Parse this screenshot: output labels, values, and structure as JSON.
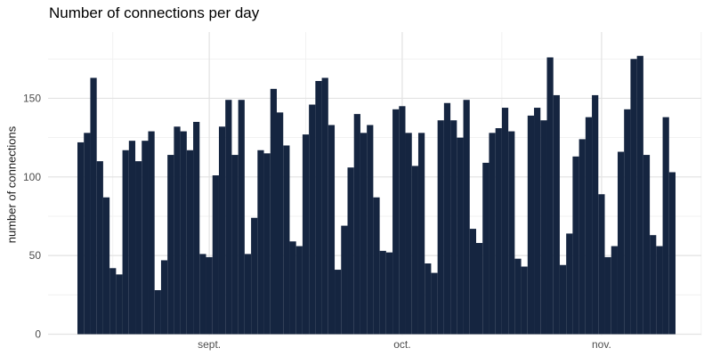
{
  "chart_data": {
    "type": "bar",
    "title": "Number of connections per day",
    "xlabel": "",
    "ylabel": "number of connections",
    "x_tick_labels": [
      "sept.",
      "oct.",
      "nov."
    ],
    "x_ticks": [
      {
        "label": "sept.",
        "bar_index": 21
      },
      {
        "label": "oct.",
        "bar_index": 51
      },
      {
        "label": "nov.",
        "bar_index": 82
      }
    ],
    "y_ticks": [
      0,
      50,
      100,
      150
    ],
    "y_minor_ticks": [
      25,
      75,
      125,
      175
    ],
    "ylim": [
      0,
      187
    ],
    "grid": true,
    "legend": "none",
    "categories_note": "daily bars, mid-August through mid-November; weekends show low counts",
    "values": [
      122,
      128,
      163,
      110,
      87,
      42,
      38,
      117,
      123,
      110,
      123,
      129,
      28,
      47,
      114,
      132,
      129,
      117,
      135,
      51,
      49,
      101,
      132,
      149,
      114,
      149,
      51,
      74,
      117,
      115,
      156,
      141,
      120,
      59,
      56,
      127,
      146,
      161,
      163,
      133,
      41,
      69,
      106,
      140,
      128,
      133,
      87,
      53,
      52,
      143,
      145,
      128,
      107,
      128,
      45,
      39,
      136,
      147,
      136,
      125,
      149,
      67,
      58,
      109,
      128,
      131,
      144,
      129,
      48,
      43,
      139,
      144,
      136,
      176,
      152,
      44,
      64,
      113,
      124,
      138,
      152,
      89,
      49,
      56,
      116,
      143,
      175,
      177,
      114,
      63,
      56,
      138,
      103
    ],
    "colors": {
      "bar_fill": "#152540",
      "title_text": "#000000",
      "axis_text": "#4d4d4d",
      "axis_title_text": "#1a1a1a",
      "grid_major": "#e2e2e2",
      "grid_minor": "#eeeeee",
      "background": "#ffffff"
    }
  }
}
